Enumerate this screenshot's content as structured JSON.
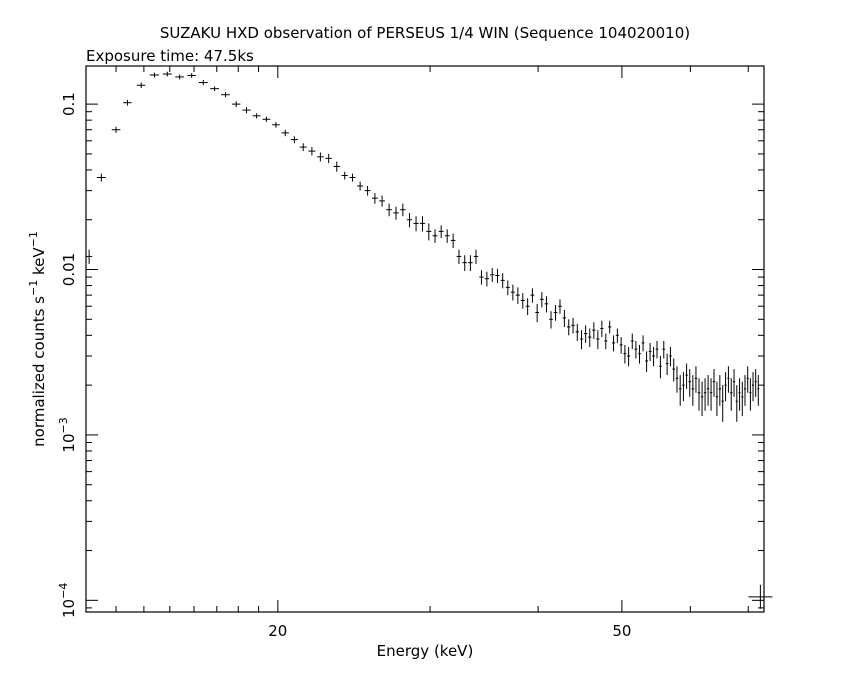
{
  "chart_data": {
    "type": "scatter",
    "title": "SUZAKU HXD observation of PERSEUS 1/4 WIN (Sequence 104020010)",
    "subtitle": "Exposure time: 47.5ks",
    "xlabel": "Energy (keV)",
    "ylabel_main": "normalized counts s",
    "ylabel_sup1": "−1",
    "ylabel_mid": " keV",
    "ylabel_sup2": "−1",
    "xscale": "log",
    "yscale": "log",
    "xlim": [
      12.0,
      73.0
    ],
    "ylim": [
      8.5e-05,
      0.17
    ],
    "xticks": [
      {
        "value": 20,
        "label": "20"
      },
      {
        "value": 50,
        "label": "50"
      }
    ],
    "yticks": [
      {
        "value": 0.1,
        "label": "0.1",
        "base": "",
        "exp": ""
      },
      {
        "value": 0.01,
        "label": "0.01",
        "base": "",
        "exp": ""
      },
      {
        "value": 0.001,
        "label": "",
        "base": "10",
        "exp": "−3"
      },
      {
        "value": 0.0001,
        "label": "",
        "base": "10",
        "exp": "−4"
      }
    ],
    "series": [
      {
        "points": [
          [
            12.1,
            0.012,
            0.1,
            0.0012
          ],
          [
            12.5,
            0.036,
            0.15,
            0.002
          ],
          [
            13.0,
            0.07,
            0.15,
            0.003
          ],
          [
            13.4,
            0.102,
            0.15,
            0.004
          ],
          [
            13.9,
            0.13,
            0.15,
            0.005
          ],
          [
            14.4,
            0.15,
            0.18,
            0.005
          ],
          [
            14.9,
            0.152,
            0.18,
            0.005
          ],
          [
            15.4,
            0.146,
            0.18,
            0.005
          ],
          [
            15.9,
            0.149,
            0.18,
            0.005
          ],
          [
            16.4,
            0.135,
            0.2,
            0.005
          ],
          [
            16.9,
            0.124,
            0.2,
            0.004
          ],
          [
            17.4,
            0.114,
            0.2,
            0.004
          ],
          [
            17.9,
            0.1,
            0.2,
            0.004
          ],
          [
            18.4,
            0.092,
            0.2,
            0.004
          ],
          [
            18.9,
            0.085,
            0.2,
            0.003
          ],
          [
            19.4,
            0.081,
            0.2,
            0.003
          ],
          [
            19.9,
            0.075,
            0.2,
            0.003
          ],
          [
            20.4,
            0.067,
            0.2,
            0.003
          ],
          [
            20.9,
            0.061,
            0.2,
            0.003
          ],
          [
            21.4,
            0.055,
            0.2,
            0.003
          ],
          [
            21.9,
            0.052,
            0.2,
            0.003
          ],
          [
            22.4,
            0.048,
            0.2,
            0.003
          ],
          [
            22.9,
            0.047,
            0.2,
            0.003
          ],
          [
            23.4,
            0.042,
            0.2,
            0.003
          ],
          [
            23.9,
            0.037,
            0.2,
            0.002
          ],
          [
            24.4,
            0.036,
            0.2,
            0.002
          ],
          [
            24.9,
            0.032,
            0.2,
            0.002
          ],
          [
            25.4,
            0.03,
            0.2,
            0.002
          ],
          [
            25.9,
            0.027,
            0.2,
            0.002
          ],
          [
            26.4,
            0.026,
            0.2,
            0.002
          ],
          [
            26.9,
            0.023,
            0.2,
            0.002
          ],
          [
            27.4,
            0.022,
            0.2,
            0.002
          ],
          [
            27.9,
            0.023,
            0.2,
            0.002
          ],
          [
            28.4,
            0.02,
            0.2,
            0.002
          ],
          [
            28.9,
            0.019,
            0.2,
            0.002
          ],
          [
            29.4,
            0.019,
            0.2,
            0.002
          ],
          [
            29.9,
            0.017,
            0.2,
            0.002
          ],
          [
            30.4,
            0.016,
            0.2,
            0.0015
          ],
          [
            30.9,
            0.017,
            0.2,
            0.0015
          ],
          [
            31.4,
            0.016,
            0.2,
            0.0015
          ],
          [
            31.9,
            0.015,
            0.2,
            0.0015
          ],
          [
            32.4,
            0.012,
            0.2,
            0.0012
          ],
          [
            32.9,
            0.011,
            0.2,
            0.0012
          ],
          [
            33.4,
            0.011,
            0.2,
            0.0012
          ],
          [
            33.9,
            0.012,
            0.2,
            0.0012
          ],
          [
            34.4,
            0.009,
            0.2,
            0.0009
          ],
          [
            34.9,
            0.0088,
            0.2,
            0.0009
          ],
          [
            35.4,
            0.0093,
            0.2,
            0.0009
          ],
          [
            35.9,
            0.0092,
            0.2,
            0.0009
          ],
          [
            36.4,
            0.0086,
            0.2,
            0.0009
          ],
          [
            36.9,
            0.0078,
            0.2,
            0.0008
          ],
          [
            37.4,
            0.0073,
            0.2,
            0.0008
          ],
          [
            37.9,
            0.007,
            0.2,
            0.0008
          ],
          [
            38.4,
            0.0065,
            0.2,
            0.0007
          ],
          [
            38.9,
            0.006,
            0.2,
            0.0007
          ],
          [
            39.4,
            0.007,
            0.2,
            0.0007
          ],
          [
            39.9,
            0.0055,
            0.2,
            0.0007
          ],
          [
            40.4,
            0.0066,
            0.2,
            0.0007
          ],
          [
            40.9,
            0.0062,
            0.2,
            0.0007
          ],
          [
            41.4,
            0.005,
            0.2,
            0.0006
          ],
          [
            41.9,
            0.0055,
            0.2,
            0.0006
          ],
          [
            42.4,
            0.006,
            0.2,
            0.0006
          ],
          [
            42.9,
            0.0051,
            0.2,
            0.0006
          ],
          [
            43.4,
            0.0045,
            0.2,
            0.0005
          ],
          [
            43.9,
            0.0046,
            0.2,
            0.0005
          ],
          [
            44.4,
            0.0042,
            0.2,
            0.0005
          ],
          [
            44.9,
            0.0038,
            0.2,
            0.0005
          ],
          [
            45.4,
            0.0041,
            0.2,
            0.0005
          ],
          [
            45.9,
            0.0039,
            0.2,
            0.0005
          ],
          [
            46.4,
            0.0043,
            0.2,
            0.0005
          ],
          [
            46.9,
            0.0038,
            0.2,
            0.0005
          ],
          [
            47.4,
            0.0044,
            0.2,
            0.0005
          ],
          [
            47.9,
            0.0037,
            0.2,
            0.0004
          ],
          [
            48.4,
            0.0045,
            0.2,
            0.0004
          ],
          [
            48.9,
            0.0036,
            0.2,
            0.0004
          ],
          [
            49.4,
            0.004,
            0.2,
            0.0004
          ],
          [
            49.9,
            0.0035,
            0.2,
            0.0004
          ],
          [
            50.4,
            0.0031,
            0.2,
            0.0004
          ],
          [
            50.9,
            0.003,
            0.2,
            0.0004
          ],
          [
            51.4,
            0.0037,
            0.2,
            0.0004
          ],
          [
            51.9,
            0.0033,
            0.2,
            0.0004
          ],
          [
            52.4,
            0.0031,
            0.2,
            0.0004
          ],
          [
            52.9,
            0.0036,
            0.2,
            0.0004
          ],
          [
            53.4,
            0.0028,
            0.2,
            0.0004
          ],
          [
            53.9,
            0.0032,
            0.2,
            0.0004
          ],
          [
            54.4,
            0.003,
            0.2,
            0.0004
          ],
          [
            54.9,
            0.0033,
            0.2,
            0.0004
          ],
          [
            55.4,
            0.0026,
            0.2,
            0.0004
          ],
          [
            55.9,
            0.0033,
            0.2,
            0.0004
          ],
          [
            56.4,
            0.0027,
            0.2,
            0.0004
          ],
          [
            56.9,
            0.003,
            0.2,
            0.0004
          ],
          [
            57.4,
            0.0025,
            0.2,
            0.0004
          ],
          [
            57.9,
            0.0022,
            0.2,
            0.0004
          ],
          [
            58.4,
            0.0019,
            0.2,
            0.0004
          ],
          [
            58.9,
            0.002,
            0.2,
            0.0004
          ],
          [
            59.4,
            0.0023,
            0.2,
            0.0004
          ],
          [
            59.9,
            0.0021,
            0.2,
            0.0004
          ],
          [
            60.4,
            0.0019,
            0.2,
            0.0004
          ],
          [
            60.9,
            0.0022,
            0.2,
            0.0004
          ],
          [
            61.4,
            0.0018,
            0.2,
            0.0004
          ],
          [
            61.9,
            0.0017,
            0.2,
            0.0004
          ],
          [
            62.4,
            0.0018,
            0.2,
            0.0004
          ],
          [
            62.9,
            0.0019,
            0.2,
            0.0004
          ],
          [
            63.4,
            0.0018,
            0.2,
            0.0004
          ],
          [
            63.9,
            0.0021,
            0.2,
            0.0004
          ],
          [
            64.4,
            0.0017,
            0.2,
            0.0004
          ],
          [
            64.9,
            0.0019,
            0.2,
            0.0004
          ],
          [
            65.4,
            0.0016,
            0.2,
            0.0004
          ],
          [
            65.9,
            0.002,
            0.2,
            0.0004
          ],
          [
            66.4,
            0.0022,
            0.2,
            0.0004
          ],
          [
            66.9,
            0.0018,
            0.2,
            0.0004
          ],
          [
            67.4,
            0.0021,
            0.2,
            0.0004
          ],
          [
            67.9,
            0.0016,
            0.2,
            0.0004
          ],
          [
            68.4,
            0.0018,
            0.2,
            0.0004
          ],
          [
            68.9,
            0.0017,
            0.2,
            0.0004
          ],
          [
            69.4,
            0.0019,
            0.2,
            0.0004
          ],
          [
            69.9,
            0.0022,
            0.2,
            0.0004
          ],
          [
            70.4,
            0.0018,
            0.2,
            0.0004
          ],
          [
            70.9,
            0.002,
            0.2,
            0.0004
          ],
          [
            71.4,
            0.0021,
            0.2,
            0.0004
          ],
          [
            71.9,
            0.0019,
            0.2,
            0.0004
          ]
        ]
      }
    ],
    "marker_color": "#000000"
  }
}
